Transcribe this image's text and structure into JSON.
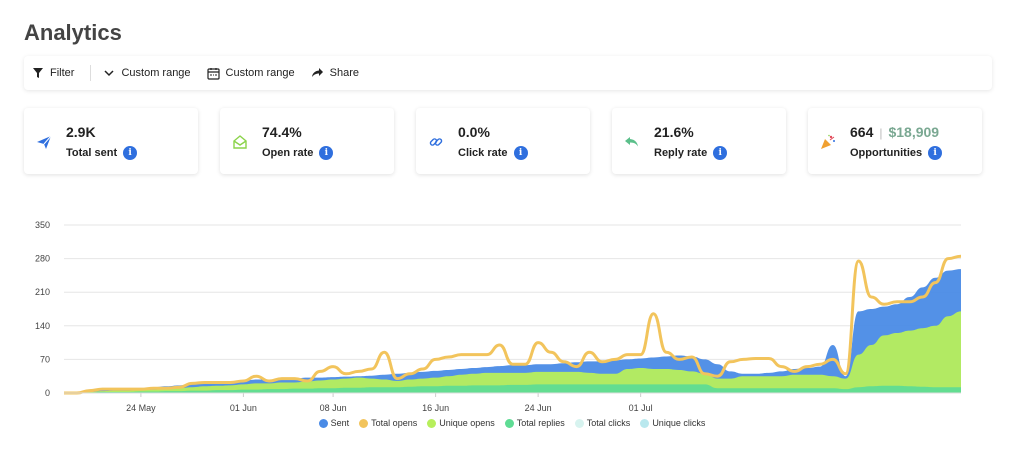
{
  "page": {
    "title": "Analytics"
  },
  "toolbar": {
    "filter_label": "Filter",
    "range1_label": "Custom range",
    "range2_label": "Custom range",
    "share_label": "Share"
  },
  "cards": [
    {
      "value": "2.9K",
      "label": "Total sent",
      "icon": "send-icon"
    },
    {
      "value": "74.4%",
      "label": "Open rate",
      "icon": "envelope-open-icon"
    },
    {
      "value": "0.0%",
      "label": "Click rate",
      "icon": "link-icon"
    },
    {
      "value": "21.6%",
      "label": "Reply rate",
      "icon": "reply-icon"
    },
    {
      "value": "664",
      "value2": "$18,909",
      "label": "Opportunities",
      "icon": "party-popper-icon"
    }
  ],
  "info_glyph": "i",
  "colors": {
    "sent": "#4a8be6",
    "total_opens": "#f2c45c",
    "unique_opens": "#b7ef5c",
    "total_replies": "#5fdc94",
    "total_clicks": "#d7f3ef",
    "unique_clicks": "#b9e8ee"
  },
  "chart_data": {
    "type": "area",
    "y_ticks": [
      "0",
      "70",
      "140",
      "210",
      "280",
      "350"
    ],
    "ylim": [
      0,
      350
    ],
    "x_ticks": [
      "24 May",
      "01 Jun",
      "08 Jun",
      "16 Jun",
      "24 Jun",
      "01 Jul"
    ],
    "grid": true,
    "legend_position": "bottom",
    "legend": [
      "Sent",
      "Total opens",
      "Unique opens",
      "Total replies",
      "Total clicks",
      "Unique clicks"
    ],
    "series": [
      {
        "name": "Sent",
        "color_key": "sent",
        "values": [
          0,
          0,
          5,
          8,
          8,
          8,
          10,
          12,
          14,
          16,
          18,
          20,
          22,
          24,
          26,
          28,
          28,
          30,
          30,
          32,
          32,
          33,
          34,
          35,
          36,
          38,
          40,
          42,
          44,
          46,
          48,
          50,
          52,
          54,
          56,
          58,
          58,
          60,
          60,
          62,
          64,
          66,
          66,
          68,
          70,
          72,
          74,
          76,
          78,
          76,
          70,
          60,
          45,
          40,
          40,
          42,
          45,
          50,
          52,
          55,
          100,
          35,
          170,
          175,
          180,
          185,
          200,
          220,
          240,
          255,
          258
        ]
      },
      {
        "name": "Total opens",
        "color_key": "total_opens",
        "values": [
          0,
          0,
          5,
          8,
          8,
          8,
          8,
          10,
          10,
          12,
          20,
          22,
          22,
          22,
          25,
          35,
          25,
          30,
          30,
          25,
          45,
          55,
          40,
          45,
          50,
          85,
          30,
          40,
          50,
          70,
          75,
          80,
          80,
          80,
          100,
          60,
          60,
          105,
          85,
          65,
          55,
          85,
          65,
          70,
          80,
          80,
          165,
          85,
          70,
          75,
          40,
          35,
          65,
          70,
          72,
          72,
          55,
          45,
          55,
          60,
          70,
          40,
          275,
          200,
          185,
          190,
          190,
          200,
          230,
          280,
          285
        ]
      },
      {
        "name": "Unique opens",
        "color_key": "unique_opens",
        "values": [
          0,
          0,
          2,
          4,
          5,
          5,
          6,
          7,
          8,
          10,
          12,
          14,
          15,
          16,
          18,
          20,
          20,
          22,
          22,
          24,
          26,
          28,
          30,
          32,
          30,
          28,
          25,
          28,
          30,
          32,
          35,
          38,
          40,
          42,
          42,
          42,
          42,
          44,
          44,
          44,
          44,
          42,
          40,
          40,
          50,
          52,
          50,
          50,
          48,
          45,
          40,
          30,
          30,
          35,
          35,
          35,
          35,
          38,
          38,
          38,
          35,
          30,
          80,
          100,
          120,
          125,
          130,
          135,
          140,
          160,
          170
        ]
      },
      {
        "name": "Total replies",
        "color_key": "total_replies",
        "values": [
          0,
          0,
          1,
          2,
          2,
          2,
          3,
          3,
          4,
          4,
          5,
          5,
          6,
          6,
          7,
          7,
          8,
          8,
          9,
          9,
          10,
          10,
          11,
          11,
          12,
          12,
          12,
          13,
          14,
          14,
          15,
          15,
          16,
          16,
          16,
          17,
          17,
          18,
          18,
          18,
          18,
          18,
          18,
          18,
          18,
          18,
          18,
          18,
          18,
          18,
          18,
          10,
          10,
          10,
          10,
          10,
          10,
          10,
          10,
          10,
          10,
          8,
          12,
          14,
          15,
          15,
          14,
          13,
          12,
          12,
          12
        ]
      },
      {
        "name": "Total clicks",
        "color_key": "total_clicks",
        "values": [
          0,
          0,
          1,
          1,
          1,
          1,
          1,
          1,
          1,
          1,
          1,
          1,
          1,
          1,
          1,
          1,
          1,
          1,
          1,
          1,
          1,
          1,
          1,
          1,
          1,
          1,
          1,
          1,
          1,
          1,
          1,
          1,
          1,
          1,
          1,
          1,
          1,
          1,
          1,
          1,
          1,
          1,
          1,
          1,
          1,
          1,
          1,
          1,
          1,
          1,
          1,
          1,
          1,
          1,
          1,
          1,
          1,
          1,
          1,
          1,
          1,
          1,
          1,
          1,
          1,
          1,
          1,
          1,
          1,
          1,
          1
        ]
      },
      {
        "name": "Unique clicks",
        "color_key": "unique_clicks",
        "values": [
          0,
          0,
          1,
          1,
          1,
          1,
          1,
          1,
          1,
          1,
          1,
          1,
          1,
          1,
          1,
          1,
          1,
          1,
          1,
          1,
          1,
          1,
          1,
          1,
          1,
          1,
          1,
          1,
          1,
          1,
          1,
          1,
          1,
          1,
          1,
          1,
          1,
          1,
          1,
          1,
          1,
          1,
          1,
          1,
          1,
          1,
          1,
          1,
          1,
          1,
          1,
          1,
          1,
          1,
          1,
          1,
          1,
          1,
          1,
          1,
          1,
          1,
          1,
          1,
          1,
          1,
          1,
          1,
          1,
          1,
          1
        ]
      }
    ]
  }
}
